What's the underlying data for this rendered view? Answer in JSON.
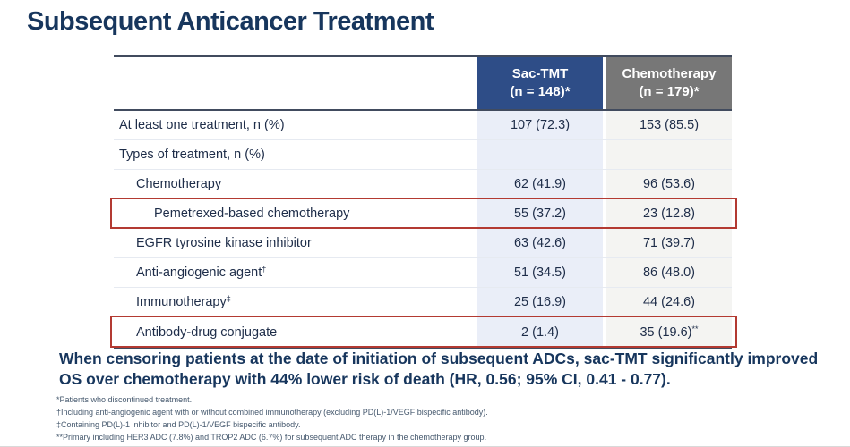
{
  "title": "Subsequent Anticancer Treatment",
  "table": {
    "columns": [
      {
        "line1": "Sac-TMT",
        "line2": "(n = 148)*"
      },
      {
        "line1": "Chemotherapy",
        "line2": "(n = 179)*"
      }
    ],
    "rows": [
      {
        "label": "At least one treatment, n (%)",
        "label_sup": "",
        "sac": "107 (72.3)",
        "chemo": "153 (85.5)",
        "chemo_sup": ""
      },
      {
        "label": "Types of treatment, n (%)",
        "label_sup": "",
        "sac": "",
        "chemo": "",
        "chemo_sup": ""
      },
      {
        "label": "Chemotherapy",
        "label_sup": "",
        "sac": "62 (41.9)",
        "chemo": "96 (53.6)",
        "chemo_sup": ""
      },
      {
        "label": "Pemetrexed-based chemotherapy",
        "label_sup": "",
        "sac": "55 (37.2)",
        "chemo": "23 (12.8)",
        "chemo_sup": ""
      },
      {
        "label": "EGFR tyrosine kinase inhibitor",
        "label_sup": "",
        "sac": "63 (42.6)",
        "chemo": "71 (39.7)",
        "chemo_sup": ""
      },
      {
        "label": "Anti-angiogenic agent",
        "label_sup": "†",
        "sac": "51 (34.5)",
        "chemo": "86 (48.0)",
        "chemo_sup": ""
      },
      {
        "label": "Immunotherapy",
        "label_sup": "‡",
        "sac": "25 (16.9)",
        "chemo": "44 (24.6)",
        "chemo_sup": ""
      },
      {
        "label": "Antibody-drug conjugate",
        "label_sup": "",
        "sac": "2 (1.4)",
        "chemo": "35 (19.6)",
        "chemo_sup": "**"
      }
    ]
  },
  "statement": "When censoring patients at the date of initiation of subsequent ADCs, sac-TMT significantly improved OS over chemotherapy with 44% lower risk of death (HR, 0.56; 95% CI, 0.41 - 0.77).",
  "footnotes": [
    "*Patients who discontinued treatment.",
    "†Including anti-angiogenic agent with or without combined immunotherapy (excluding PD(L)-1/VEGF bispecific antibody).",
    "‡Containing PD(L)-1 inhibitor and PD(L)-1/VEGF bispecific antibody.",
    "**Primary including HER3 ADC (7.8%) and TROP2 ADC (6.7%) for subsequent ADC therapy in the chemotherapy group."
  ],
  "colors": {
    "title_navy": "#17365d",
    "header_blue": "#2e4d87",
    "header_gray": "#777777",
    "sac_column_tint": "#eaeef8",
    "chemo_column_tint": "#f4f4f2",
    "rule_dark": "#414b5e",
    "highlight_red": "#b33a32",
    "body_text": "#1e2d49",
    "footnote_text": "#46596e"
  },
  "chart_data": {
    "type": "table",
    "columns": [
      "",
      "Sac-TMT (n = 148)*",
      "Chemotherapy (n = 179)*"
    ],
    "rows": [
      [
        "At least one treatment, n (%)",
        "107 (72.3)",
        "153 (85.5)"
      ],
      [
        "Types of treatment, n (%)",
        "",
        ""
      ],
      [
        "Chemotherapy",
        "62 (41.9)",
        "96 (53.6)"
      ],
      [
        "Pemetrexed-based chemotherapy",
        "55 (37.2)",
        "23 (12.8)"
      ],
      [
        "EGFR tyrosine kinase inhibitor",
        "63 (42.6)",
        "71 (39.7)"
      ],
      [
        "Anti-angiogenic agent†",
        "51 (34.5)",
        "86 (48.0)"
      ],
      [
        "Immunotherapy‡",
        "25 (16.9)",
        "44 (24.6)"
      ],
      [
        "Antibody-drug conjugate",
        "2 (1.4)",
        "35 (19.6)**"
      ]
    ],
    "highlighted_row_indices": [
      3,
      7
    ]
  }
}
